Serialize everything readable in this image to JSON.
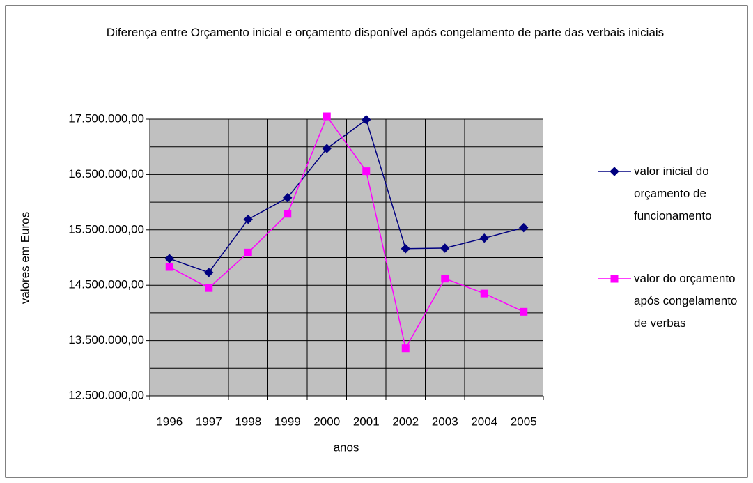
{
  "chart_data": {
    "type": "line",
    "title": "Diferença entre Orçamento inicial e orçamento disponível após congelamento de parte das verbais iniciais",
    "x_label": "anos",
    "y_label": "valores em Euros",
    "categories": [
      "1996",
      "1997",
      "1998",
      "1999",
      "2000",
      "2001",
      "2002",
      "2003",
      "2004",
      "2005"
    ],
    "series": [
      {
        "name": "valor inicial do orçamento de funcionamento",
        "color": "#000080",
        "marker": "diamond",
        "values": [
          14980000,
          14730000,
          15690000,
          16080000,
          16970000,
          17490000,
          15160000,
          15170000,
          15350000,
          15540000
        ]
      },
      {
        "name": "valor do orçamento após congelamento de verbas",
        "color": "#ff00ff",
        "marker": "square",
        "values": [
          14830000,
          14450000,
          15090000,
          15790000,
          17550000,
          16560000,
          13360000,
          14620000,
          14350000,
          14020000
        ]
      }
    ],
    "ylim": [
      12500000,
      17500000
    ],
    "yticks": [
      {
        "value": 12500000,
        "label": "12.500.000,00"
      },
      {
        "value": 13500000,
        "label": "13.500.000,00"
      },
      {
        "value": 14500000,
        "label": "14.500.000,00"
      },
      {
        "value": 15500000,
        "label": "15.500.000,00"
      },
      {
        "value": 16500000,
        "label": "16.500.000,00"
      },
      {
        "value": 17500000,
        "label": "17.500.000,00"
      }
    ],
    "minor_yticks": [
      13000000,
      14000000,
      15000000,
      16000000,
      17000000
    ],
    "grid": true,
    "legend": "right"
  }
}
